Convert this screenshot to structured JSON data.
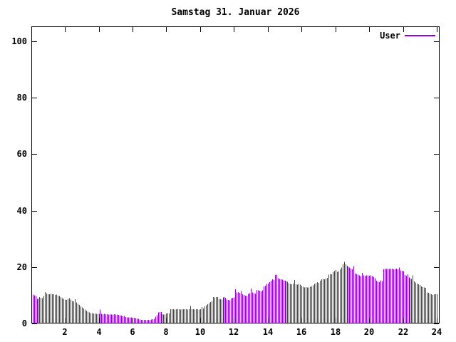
{
  "title": "Samstag 31. Januar 2026",
  "legend": {
    "label": "User"
  },
  "colors": {
    "bars": "#9400d3",
    "legend_line": "#9400d3",
    "axis": "#000000",
    "background": "#ffffff"
  },
  "chart_data": {
    "type": "bar",
    "title": "Samstag 31. Januar 2026",
    "xlabel": "",
    "ylabel": "",
    "xlim": [
      0,
      24
    ],
    "ylim": [
      0,
      105.3
    ],
    "x_ticks": [
      2,
      4,
      6,
      8,
      10,
      12,
      14,
      16,
      18,
      20,
      22,
      24
    ],
    "y_ticks": [
      0,
      20,
      40,
      60,
      80,
      100
    ],
    "grid": false,
    "legend_position": "top-right-inside",
    "bar_style": "impulses",
    "series": [
      {
        "name": "User",
        "color": "#9400d3",
        "interval_minutes": 5,
        "values": [
          10.2,
          10.0,
          9.8,
          8.7,
          8.9,
          9.4,
          9.1,
          9.0,
          9.7,
          11.1,
          10.6,
          10.4,
          10.4,
          10.5,
          10.3,
          10.4,
          10.1,
          10.2,
          9.9,
          9.7,
          9.3,
          9.0,
          8.7,
          8.4,
          8.3,
          8.7,
          9.0,
          8.5,
          8.0,
          7.8,
          8.6,
          7.4,
          7.0,
          6.6,
          6.1,
          5.7,
          5.3,
          4.9,
          4.5,
          4.2,
          3.9,
          3.7,
          3.6,
          3.5,
          3.5,
          3.4,
          3.4,
          3.4,
          4.9,
          3.4,
          3.3,
          3.4,
          3.3,
          3.3,
          3.2,
          3.3,
          3.2,
          3.2,
          3.3,
          3.2,
          3.1,
          3.0,
          2.9,
          2.8,
          2.7,
          2.6,
          2.3,
          2.2,
          2.2,
          2.1,
          2.1,
          2.0,
          2.0,
          1.9,
          1.8,
          1.6,
          1.4,
          1.3,
          1.3,
          1.2,
          1.2,
          1.3,
          1.2,
          1.3,
          1.4,
          1.5,
          1.7,
          2.4,
          2.9,
          3.9,
          4.1,
          4.0,
          3.3,
          3.1,
          3.2,
          3.5,
          3.7,
          3.6,
          5.1,
          5.0,
          5.1,
          4.9,
          5.0,
          5.1,
          5.0,
          4.9,
          5.0,
          5.1,
          5.0,
          5.1,
          4.9,
          5.0,
          6.2,
          5.1,
          5.0,
          4.9,
          5.0,
          5.1,
          4.9,
          5.0,
          5.8,
          5.3,
          6.0,
          6.4,
          6.8,
          7.2,
          7.6,
          7.9,
          9.3,
          9.2,
          9.4,
          9.3,
          8.7,
          8.6,
          8.5,
          9.2,
          9.3,
          9.1,
          8.4,
          8.3,
          8.2,
          9.0,
          9.1,
          9.2,
          12.1,
          11.0,
          11.1,
          10.9,
          11.5,
          10.3,
          10.1,
          9.9,
          9.8,
          10.5,
          10.7,
          12.4,
          11.0,
          10.7,
          10.6,
          11.9,
          11.8,
          11.6,
          11.4,
          11.7,
          13.1,
          13.4,
          14.0,
          14.2,
          14.6,
          15.2,
          15.6,
          15.4,
          17.2,
          17.3,
          16.0,
          15.8,
          15.6,
          15.5,
          15.3,
          15.1,
          15.0,
          14.8,
          14.3,
          14.0,
          13.9,
          14.1,
          15.4,
          13.9,
          13.8,
          14.0,
          13.7,
          13.4,
          13.0,
          12.8,
          12.9,
          12.7,
          12.8,
          13.0,
          13.1,
          13.5,
          14.0,
          14.3,
          14.6,
          14.4,
          15.1,
          15.6,
          15.8,
          15.7,
          15.9,
          16.2,
          17.3,
          17.6,
          17.4,
          18.3,
          18.6,
          18.9,
          18.3,
          18.4,
          19.2,
          19.8,
          21.0,
          21.8,
          20.9,
          20.4,
          20.1,
          19.8,
          19.5,
          19.2,
          20.3,
          17.8,
          17.5,
          17.3,
          17.0,
          16.8,
          17.9,
          17.0,
          16.9,
          17.1,
          17.0,
          16.9,
          17.0,
          16.8,
          16.5,
          16.0,
          15.2,
          14.8,
          14.6,
          15.3,
          15.0,
          19.2,
          19.4,
          19.3,
          19.4,
          19.3,
          19.5,
          19.4,
          19.2,
          19.3,
          19.4,
          19.2,
          19.8,
          18.8,
          18.7,
          18.6,
          17.2,
          16.9,
          17.4,
          16.3,
          16.0,
          15.8,
          17.1,
          14.9,
          14.5,
          14.2,
          13.9,
          13.6,
          13.1,
          12.9,
          12.7,
          12.6,
          11.0,
          10.8,
          10.6,
          10.4,
          10.1,
          10.3,
          10.4,
          10.3
        ]
      }
    ]
  }
}
